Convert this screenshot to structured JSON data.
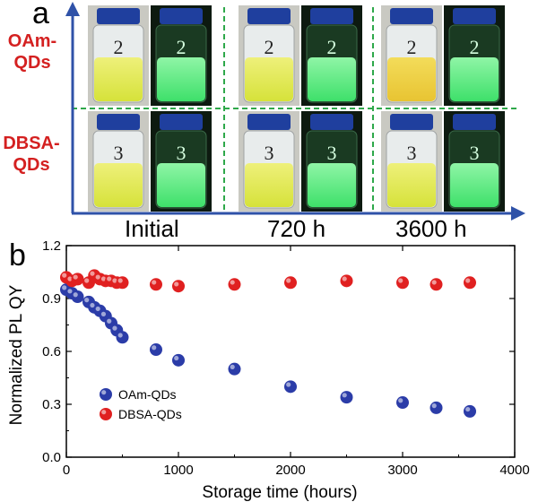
{
  "panel_a": {
    "letter": "a",
    "rows": [
      {
        "label_line1": "OAm-",
        "label_line2": "QDs",
        "vial_number": "2"
      },
      {
        "label_line1": "DBSA-",
        "label_line2": "QDs",
        "vial_number": "3"
      }
    ],
    "columns": [
      "Initial",
      "720 h",
      "3600 h"
    ],
    "colors": {
      "arrow": "#2f52a8",
      "divider": "#2ea84a",
      "label_red": "#d42020",
      "vial_cap": "#1f3f9e",
      "daylight_liquid": "#d6e23a",
      "uv_liquid": "#3ee06a"
    }
  },
  "chart_data": {
    "type": "scatter",
    "letter": "b",
    "title": "",
    "xlabel": "Storage time (hours)",
    "ylabel": "Normalized PL QY",
    "xlim": [
      0,
      4000
    ],
    "ylim": [
      0.0,
      1.2
    ],
    "xticks": [
      0,
      1000,
      2000,
      3000,
      4000
    ],
    "yticks": [
      "0.0",
      "0.3",
      "0.6",
      "0.9",
      "1.2"
    ],
    "grid": false,
    "legend_position": "bottom-left",
    "series": [
      {
        "name": "OAm-QDs",
        "color": "#2b3ca8",
        "x": [
          0,
          50,
          100,
          200,
          250,
          300,
          350,
          400,
          450,
          500,
          800,
          1000,
          1500,
          2000,
          2500,
          3000,
          3300,
          3600
        ],
        "y": [
          0.95,
          0.93,
          0.91,
          0.88,
          0.85,
          0.83,
          0.8,
          0.76,
          0.72,
          0.68,
          0.61,
          0.55,
          0.5,
          0.4,
          0.34,
          0.31,
          0.28,
          0.26
        ]
      },
      {
        "name": "DBSA-QDs",
        "color": "#e02020",
        "x": [
          0,
          50,
          100,
          200,
          250,
          300,
          350,
          400,
          450,
          500,
          800,
          1000,
          1500,
          2000,
          2500,
          3000,
          3300,
          3600
        ],
        "y": [
          1.02,
          1.0,
          1.01,
          0.99,
          1.03,
          1.01,
          1.0,
          1.0,
          0.99,
          0.99,
          0.98,
          0.97,
          0.98,
          0.99,
          1.0,
          0.99,
          0.98,
          0.99
        ]
      }
    ]
  }
}
